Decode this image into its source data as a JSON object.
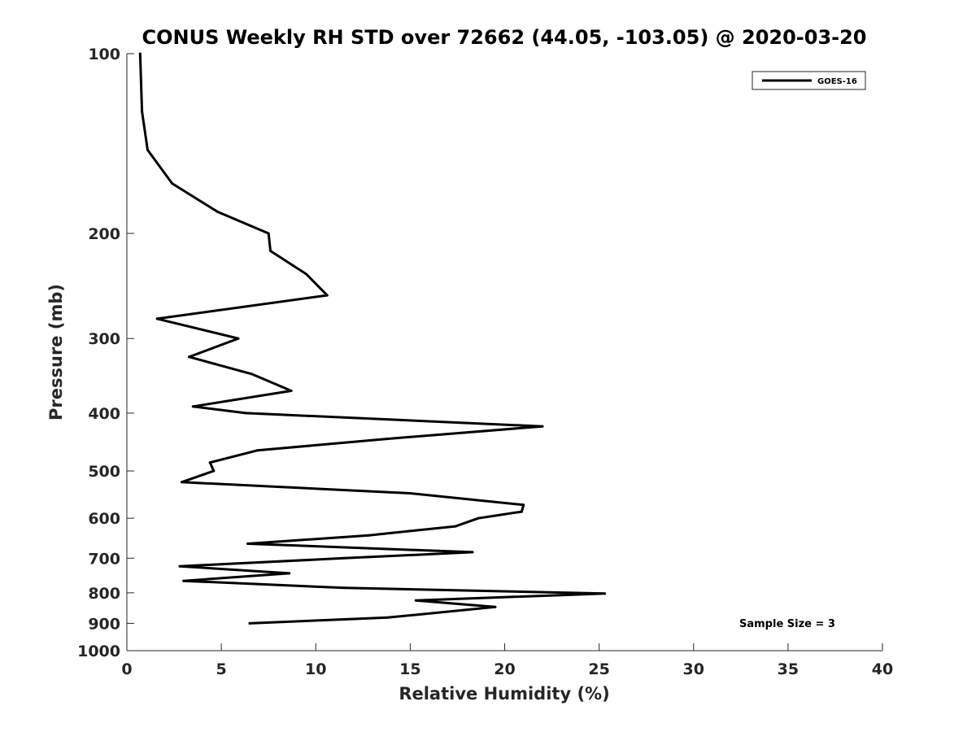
{
  "chart_data": {
    "type": "line",
    "title": "CONUS Weekly RH STD over 72662 (44.05, -103.05) @ 2020-03-20",
    "xlabel": "Relative Humidity (%)",
    "ylabel": "Pressure (mb)",
    "xlim": [
      0,
      40
    ],
    "ylim": [
      100,
      1000
    ],
    "y_scale": "log",
    "y_reversed": true,
    "x_ticks": [
      0,
      5,
      10,
      15,
      20,
      25,
      30,
      35,
      40
    ],
    "y_ticks": [
      100,
      200,
      300,
      400,
      500,
      600,
      700,
      800,
      900,
      1000
    ],
    "grid": false,
    "legend_position": "top-right",
    "annotation": "Sample Size = 3",
    "series": [
      {
        "name": "GOES-16",
        "color": "#000000",
        "points": [
          {
            "x": 0.7,
            "y": 100
          },
          {
            "x": 0.8,
            "y": 125
          },
          {
            "x": 1.1,
            "y": 145
          },
          {
            "x": 2.4,
            "y": 165
          },
          {
            "x": 4.8,
            "y": 184
          },
          {
            "x": 7.5,
            "y": 200
          },
          {
            "x": 7.6,
            "y": 214
          },
          {
            "x": 9.5,
            "y": 234
          },
          {
            "x": 10.6,
            "y": 254
          },
          {
            "x": 1.6,
            "y": 278
          },
          {
            "x": 5.9,
            "y": 300
          },
          {
            "x": 3.3,
            "y": 322
          },
          {
            "x": 6.6,
            "y": 344
          },
          {
            "x": 8.7,
            "y": 367
          },
          {
            "x": 3.5,
            "y": 390
          },
          {
            "x": 6.3,
            "y": 400
          },
          {
            "x": 22.0,
            "y": 421
          },
          {
            "x": 13.7,
            "y": 442
          },
          {
            "x": 6.9,
            "y": 462
          },
          {
            "x": 4.4,
            "y": 484
          },
          {
            "x": 4.6,
            "y": 500
          },
          {
            "x": 2.9,
            "y": 522
          },
          {
            "x": 15.0,
            "y": 545
          },
          {
            "x": 21.0,
            "y": 570
          },
          {
            "x": 20.9,
            "y": 585
          },
          {
            "x": 18.6,
            "y": 600
          },
          {
            "x": 17.4,
            "y": 619
          },
          {
            "x": 12.8,
            "y": 641
          },
          {
            "x": 6.4,
            "y": 662
          },
          {
            "x": 18.3,
            "y": 684
          },
          {
            "x": 11.5,
            "y": 700
          },
          {
            "x": 2.8,
            "y": 722
          },
          {
            "x": 8.6,
            "y": 742
          },
          {
            "x": 3.0,
            "y": 764
          },
          {
            "x": 11.5,
            "y": 785
          },
          {
            "x": 25.3,
            "y": 802
          },
          {
            "x": 15.3,
            "y": 824
          },
          {
            "x": 19.5,
            "y": 845
          },
          {
            "x": 13.8,
            "y": 880
          },
          {
            "x": 6.5,
            "y": 900
          }
        ]
      }
    ]
  }
}
